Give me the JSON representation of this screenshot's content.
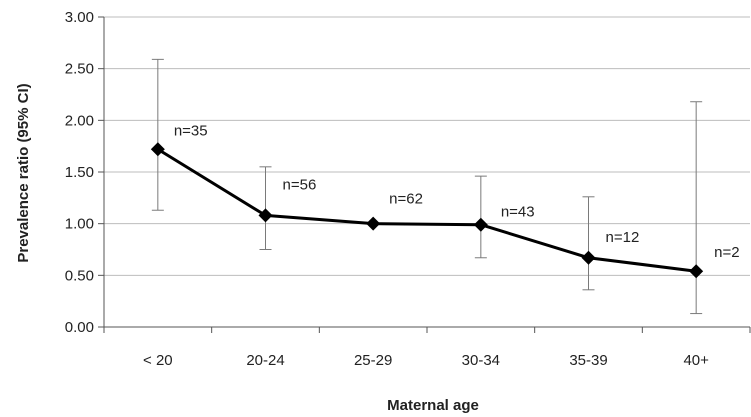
{
  "chart_data": {
    "type": "line",
    "title": "",
    "xlabel": "Maternal age",
    "ylabel": "Prevalence ratio (95% CI)",
    "categories": [
      "< 20",
      "20-24",
      "25-29",
      "30-34",
      "35-39",
      "40+"
    ],
    "ylim": [
      0,
      3
    ],
    "yticks": [
      "0.00",
      "0.50",
      "1.00",
      "1.50",
      "2.00",
      "2.50",
      "3.00"
    ],
    "grid": true,
    "legend": "none",
    "series": [
      {
        "values": [
          1.72,
          1.08,
          1.0,
          0.99,
          0.67,
          0.54
        ],
        "ci_lower": [
          1.13,
          0.75,
          1.0,
          0.67,
          0.36,
          0.13
        ],
        "ci_upper": [
          2.59,
          1.55,
          1.0,
          1.46,
          1.26,
          2.18
        ],
        "marker": "diamond",
        "color": "#000000"
      }
    ],
    "annotations": [
      "n=35",
      "n=56",
      "n=62",
      "n=43",
      "n=12",
      "n=2"
    ]
  }
}
